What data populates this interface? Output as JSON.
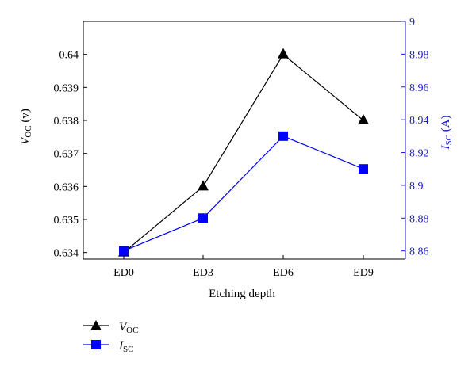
{
  "chart_data": {
    "type": "line",
    "categories": [
      "ED0",
      "ED3",
      "ED6",
      "ED9"
    ],
    "xlabel": "Etching depth",
    "left_axis": {
      "label_main": "V",
      "label_sub": "OC",
      "label_unit": " (v)",
      "ylim": [
        0.6338,
        0.641
      ],
      "ticks": [
        "0.634",
        "0.635",
        "0.636",
        "0.637",
        "0.638",
        "0.639",
        "0.64"
      ],
      "tick_values": [
        0.634,
        0.635,
        0.636,
        0.637,
        0.638,
        0.639,
        0.64
      ],
      "color": "#000000"
    },
    "right_axis": {
      "label_main": "I",
      "label_sub": "SC",
      "label_unit": " (A)",
      "ylim": [
        8.855,
        9.0
      ],
      "ticks": [
        "8.86",
        "8.88",
        "8.9",
        "8.92",
        "8.94",
        "8.96",
        "8.98",
        "9"
      ],
      "tick_values": [
        8.86,
        8.88,
        8.9,
        8.92,
        8.94,
        8.96,
        8.98,
        9.0
      ],
      "color": "#1a1acc"
    },
    "series": [
      {
        "name": "V_OC",
        "name_main": "V",
        "name_sub": "OC",
        "axis": "left",
        "marker": "triangle",
        "color": "#000000",
        "values": [
          0.634,
          0.636,
          0.64,
          0.638
        ]
      },
      {
        "name": "I_SC",
        "name_main": "I",
        "name_sub": "SC",
        "axis": "right",
        "marker": "square",
        "color": "#0000ff",
        "values": [
          8.86,
          8.88,
          8.93,
          8.91
        ]
      }
    ],
    "legend_position": "bottom-left",
    "grid": false
  }
}
